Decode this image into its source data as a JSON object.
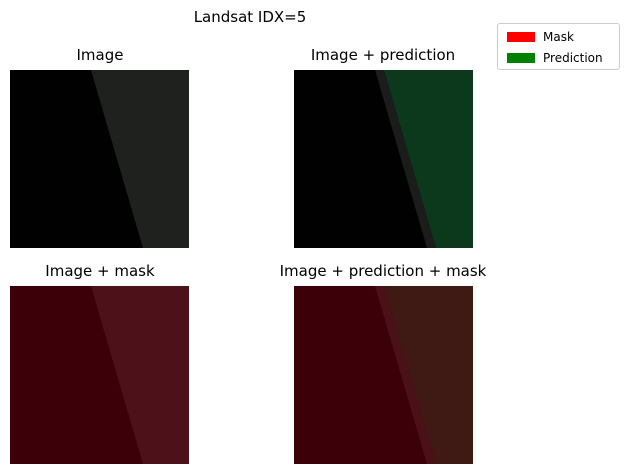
{
  "figure": {
    "suptitle": "Landsat IDX=5"
  },
  "panels": [
    {
      "title": "Image",
      "dark": "#010101",
      "light": "#1f211f"
    },
    {
      "title": "Image + prediction",
      "dark": "#010101",
      "light": "#0c381c"
    },
    {
      "title": "Image + mask",
      "dark": "#3c0108",
      "light": "#4d1119"
    },
    {
      "title": "Image + prediction + mask",
      "dark": "#3c0108",
      "light": "#3f1a14"
    }
  ],
  "legend": {
    "items": [
      {
        "label": "Mask",
        "color": "#ff0000"
      },
      {
        "label": "Prediction",
        "color": "#008000"
      }
    ]
  }
}
